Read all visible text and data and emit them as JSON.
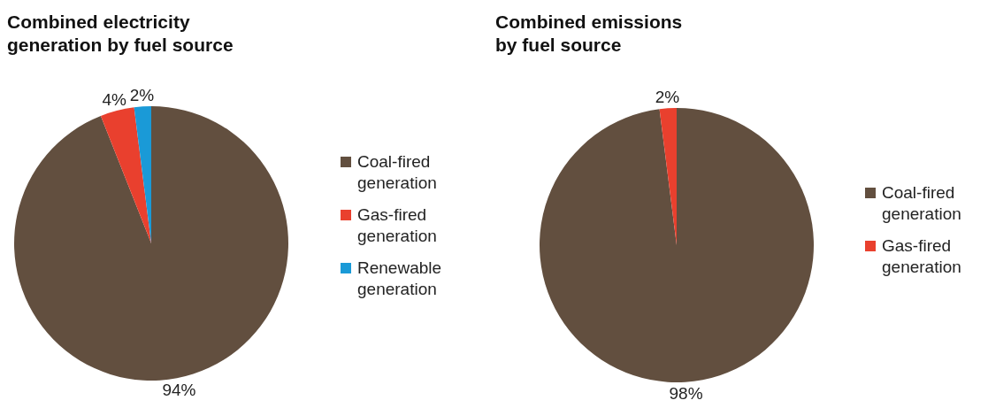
{
  "chart_data": [
    {
      "type": "pie",
      "title": "Combined electricity generation by fuel source",
      "categories": [
        "Coal-fired generation",
        "Gas-fired generation",
        "Renewable generation"
      ],
      "values": [
        94,
        4,
        2
      ],
      "colors": [
        "#624f3f",
        "#e9402e",
        "#1a9ad7"
      ],
      "value_labels": [
        "94%",
        "4%",
        "2%"
      ],
      "legend": "right"
    },
    {
      "type": "pie",
      "title": "Combined emissions by fuel source",
      "categories": [
        "Coal-fired generation",
        "Gas-fired generation"
      ],
      "values": [
        98,
        2
      ],
      "colors": [
        "#624f3f",
        "#e9402e"
      ],
      "value_labels": [
        "98%",
        "2%"
      ],
      "legend": "right"
    }
  ]
}
